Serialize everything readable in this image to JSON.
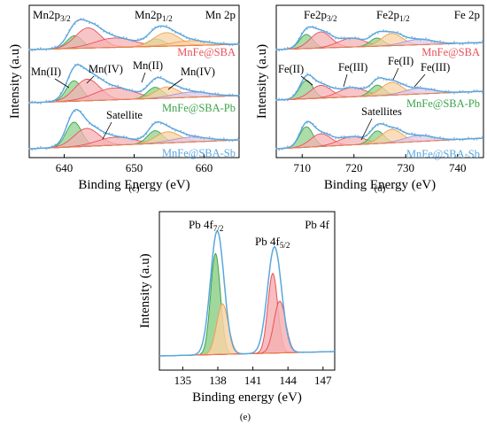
{
  "colors": {
    "envelope": "#5aa6dd",
    "raw": "#8fb8e0",
    "red": "#e8505a",
    "red_fill": "#f6b1b4",
    "green": "#3aa34a",
    "green_fill": "#8fd08c",
    "orange": "#f0a04a",
    "orange_fill": "#f8d3a6",
    "purple": "#b191c8",
    "purple_fill": "#ddc8ea",
    "baseline": "#f07a4a",
    "axis": "#000000"
  },
  "chart_data": [
    {
      "id": "c",
      "panel_label": "(c)",
      "type": "line",
      "corner_label": "Mn 2p",
      "xlabel": "Binding Energy (eV)",
      "ylabel": "Intensity (a.u)",
      "xlim": [
        635,
        665
      ],
      "xticks": [
        640,
        650,
        660
      ],
      "peak_labels": {
        "p32": {
          "main": "Mn2p",
          "sub": "3/2"
        },
        "p12": {
          "main": "Mn2p",
          "sub": "1/2"
        }
      },
      "annotations": [
        {
          "text": "Mn(II)",
          "x": 640.8
        },
        {
          "text": "Mn(IV)",
          "x": 644.5
        },
        {
          "text": "Mn(II)",
          "x": 653.0
        },
        {
          "text": "Mn(IV)",
          "x": 657.5
        },
        {
          "text": "Satellite",
          "x": 650.5
        }
      ],
      "traces": [
        {
          "name": "MnFe@SBA",
          "name_color": "#e8505a",
          "components": [
            {
              "center": 641.5,
              "height": 0.38,
              "width": 1.1,
              "color": "green"
            },
            {
              "center": 643.4,
              "height": 0.6,
              "width": 1.8,
              "color": "red"
            },
            {
              "center": 647.2,
              "height": 0.28,
              "width": 2.8,
              "color": "red"
            },
            {
              "center": 653.1,
              "height": 0.22,
              "width": 1.2,
              "color": "green"
            },
            {
              "center": 654.6,
              "height": 0.4,
              "width": 1.8,
              "color": "orange"
            },
            {
              "center": 658.0,
              "height": 0.14,
              "width": 2.6,
              "color": "orange"
            }
          ]
        },
        {
          "name": "MnFe@SBA-Pb",
          "name_color": "#3aa34a",
          "components": [
            {
              "center": 641.4,
              "height": 0.55,
              "width": 1.1,
              "color": "green"
            },
            {
              "center": 643.3,
              "height": 0.58,
              "width": 1.8,
              "color": "red"
            },
            {
              "center": 647.2,
              "height": 0.32,
              "width": 2.8,
              "color": "red"
            },
            {
              "center": 653.0,
              "height": 0.3,
              "width": 1.1,
              "color": "green"
            },
            {
              "center": 654.7,
              "height": 0.3,
              "width": 1.7,
              "color": "orange"
            },
            {
              "center": 658.2,
              "height": 0.14,
              "width": 2.6,
              "color": "purple"
            }
          ]
        },
        {
          "name": "MnFe@SBA-Sb",
          "name_color": "#5aa6dd",
          "components": [
            {
              "center": 641.4,
              "height": 0.62,
              "width": 1.1,
              "color": "green"
            },
            {
              "center": 643.2,
              "height": 0.45,
              "width": 1.8,
              "color": "red"
            },
            {
              "center": 647.3,
              "height": 0.2,
              "width": 2.6,
              "color": "red"
            },
            {
              "center": 653.0,
              "height": 0.32,
              "width": 1.1,
              "color": "green"
            },
            {
              "center": 654.8,
              "height": 0.28,
              "width": 1.7,
              "color": "orange"
            },
            {
              "center": 658.0,
              "height": 0.12,
              "width": 2.6,
              "color": "purple"
            }
          ]
        }
      ]
    },
    {
      "id": "d",
      "panel_label": "(d)",
      "type": "line",
      "corner_label": "Fe 2p",
      "xlabel": "Binding Energy (eV)",
      "ylabel": "Intensity (a.u)",
      "xlim": [
        705,
        745
      ],
      "xticks": [
        710,
        720,
        730,
        740
      ],
      "peak_labels": {
        "p32": {
          "main": "Fe2p",
          "sub": "3/2"
        },
        "p12": {
          "main": "Fe2p",
          "sub": "1/2"
        }
      },
      "annotations": [
        {
          "text": "Fe(II)",
          "x": 709.5
        },
        {
          "text": "Fe(III)",
          "x": 716.0
        },
        {
          "text": "Fe(II)",
          "x": 725.5
        },
        {
          "text": "Fe(III)",
          "x": 731.0
        },
        {
          "text": "Satellites",
          "x": 722.5
        }
      ],
      "traces": [
        {
          "name": "MnFe@SBA",
          "name_color": "#e8505a",
          "components": [
            {
              "center": 710.8,
              "height": 0.42,
              "width": 1.3,
              "color": "green"
            },
            {
              "center": 713.6,
              "height": 0.48,
              "width": 2.0,
              "color": "red"
            },
            {
              "center": 719.5,
              "height": 0.26,
              "width": 2.6,
              "color": "red"
            },
            {
              "center": 724.4,
              "height": 0.24,
              "width": 1.3,
              "color": "green"
            },
            {
              "center": 727.3,
              "height": 0.36,
              "width": 2.0,
              "color": "orange"
            },
            {
              "center": 732.5,
              "height": 0.16,
              "width": 2.8,
              "color": "purple"
            }
          ]
        },
        {
          "name": "MnFe@SBA-Pb",
          "name_color": "#3aa34a",
          "components": [
            {
              "center": 710.8,
              "height": 0.52,
              "width": 1.3,
              "color": "green"
            },
            {
              "center": 713.6,
              "height": 0.36,
              "width": 2.0,
              "color": "red"
            },
            {
              "center": 719.6,
              "height": 0.26,
              "width": 2.6,
              "color": "red"
            },
            {
              "center": 724.5,
              "height": 0.3,
              "width": 1.3,
              "color": "green"
            },
            {
              "center": 727.3,
              "height": 0.36,
              "width": 2.0,
              "color": "orange"
            },
            {
              "center": 732.5,
              "height": 0.16,
              "width": 2.8,
              "color": "purple"
            }
          ]
        },
        {
          "name": "MnFe@SBA-Sb",
          "name_color": "#5aa6dd",
          "components": [
            {
              "center": 710.8,
              "height": 0.55,
              "width": 1.3,
              "color": "green"
            },
            {
              "center": 713.6,
              "height": 0.34,
              "width": 2.0,
              "color": "red"
            },
            {
              "center": 719.6,
              "height": 0.22,
              "width": 2.6,
              "color": "red"
            },
            {
              "center": 724.5,
              "height": 0.34,
              "width": 1.3,
              "color": "green"
            },
            {
              "center": 727.3,
              "height": 0.36,
              "width": 2.0,
              "color": "orange"
            },
            {
              "center": 732.5,
              "height": 0.16,
              "width": 2.8,
              "color": "purple"
            }
          ]
        }
      ]
    },
    {
      "id": "e",
      "panel_label": "(e)",
      "type": "line",
      "corner_label": "Pb 4f",
      "xlabel": "Binding energy (eV)",
      "ylabel": "Intensity (a.u)",
      "xlim": [
        133,
        148
      ],
      "xticks": [
        135,
        138,
        141,
        144,
        147
      ],
      "peak_labels": {
        "p72": {
          "main": "Pb 4f",
          "sub": "7/2"
        },
        "p52": {
          "main": "Pb 4f",
          "sub": "5/2"
        }
      },
      "components": [
        {
          "center": 137.8,
          "height": 0.76,
          "width": 0.42,
          "color": "green"
        },
        {
          "center": 138.4,
          "height": 0.38,
          "width": 0.5,
          "color": "orange"
        },
        {
          "center": 142.7,
          "height": 0.6,
          "width": 0.42,
          "color": "red"
        },
        {
          "center": 143.3,
          "height": 0.39,
          "width": 0.5,
          "color": "red"
        }
      ],
      "envelope_peaks": {
        "first": 0.93,
        "second": 0.8
      }
    }
  ]
}
